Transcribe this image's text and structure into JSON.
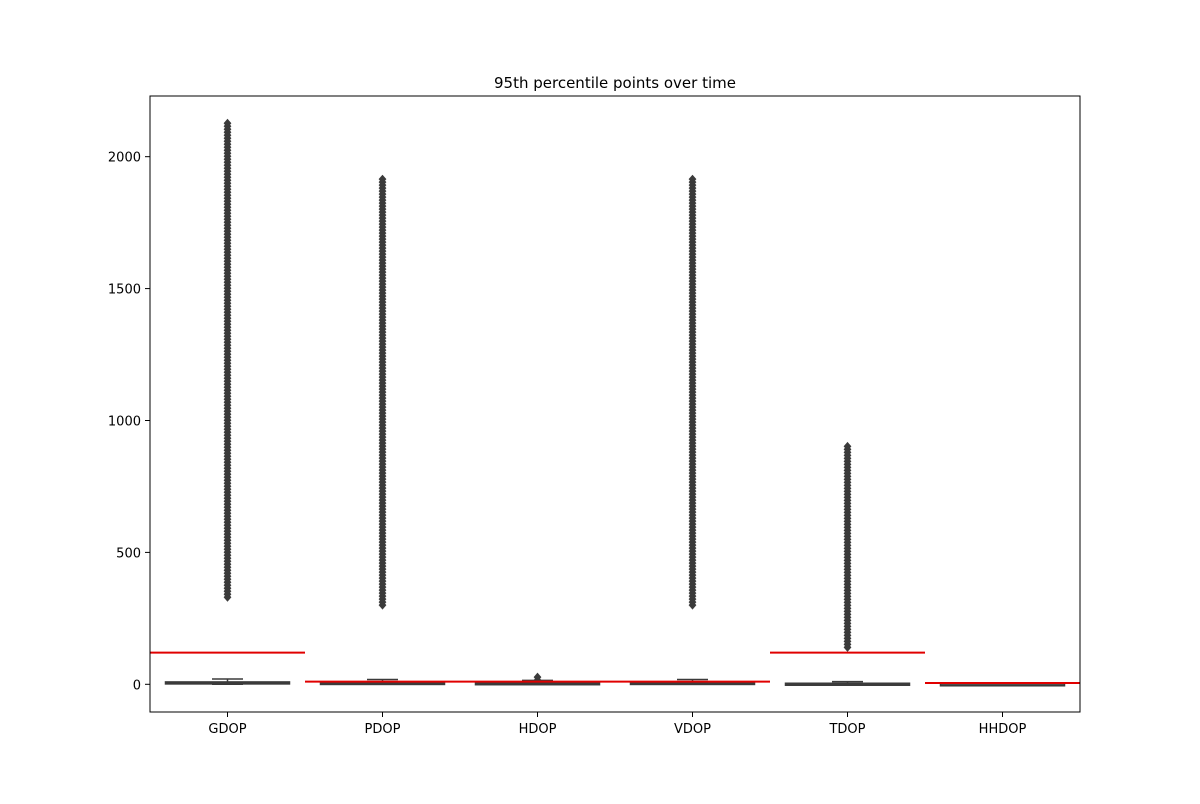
{
  "chart_data": {
    "type": "box",
    "title": "95th percentile points over time",
    "xlabel": "",
    "ylabel": "",
    "categories": [
      "GDOP",
      "PDOP",
      "HDOP",
      "VDOP",
      "TDOP",
      "HHDOP"
    ],
    "ylim": [
      -105,
      2230
    ],
    "yticks": [
      0,
      500,
      1000,
      1500,
      2000
    ],
    "grid": false,
    "box_color": "#3b3b3b",
    "threshold_color": "#e00000",
    "boxes": [
      {
        "name": "GDOP",
        "q1": 2,
        "median": 5,
        "q3": 9,
        "whisker_low": 0,
        "whisker_high": 20,
        "outlier_min": 330,
        "outlier_max": 2130,
        "threshold": 120
      },
      {
        "name": "PDOP",
        "q1": 1,
        "median": 4,
        "q3": 7,
        "whisker_low": 0,
        "whisker_high": 18,
        "outlier_min": 300,
        "outlier_max": 1925,
        "threshold": 10
      },
      {
        "name": "HDOP",
        "q1": 1,
        "median": 3,
        "q3": 6,
        "whisker_low": 0,
        "whisker_high": 15,
        "outlier_min": 16,
        "outlier_max": 30,
        "threshold": 10
      },
      {
        "name": "VDOP",
        "q1": 1,
        "median": 4,
        "q3": 7,
        "whisker_low": 0,
        "whisker_high": 18,
        "outlier_min": 300,
        "outlier_max": 1925,
        "threshold": 10
      },
      {
        "name": "TDOP",
        "q1": 1,
        "median": 2,
        "q3": 4,
        "whisker_low": 0,
        "whisker_high": 10,
        "outlier_min": 140,
        "outlier_max": 910,
        "threshold": 120
      },
      {
        "name": "HHDOP",
        "q1": 0,
        "median": 1,
        "q3": 2,
        "whisker_low": 0,
        "whisker_high": 4,
        "outlier_min": null,
        "outlier_max": null,
        "threshold": 5
      }
    ]
  }
}
